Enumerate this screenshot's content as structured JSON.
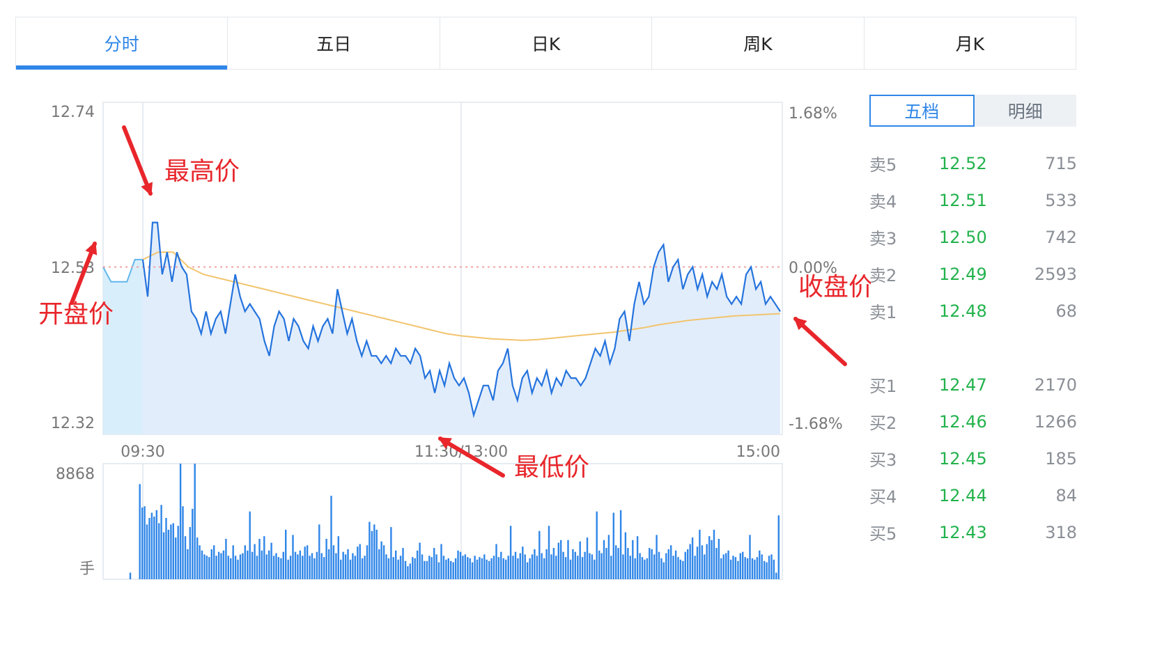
{
  "tabs": [
    {
      "label": "分时",
      "active": true
    },
    {
      "label": "五日",
      "active": false
    },
    {
      "label": "日K",
      "active": false
    },
    {
      "label": "周K",
      "active": false
    },
    {
      "label": "月K",
      "active": false
    }
  ],
  "orderbook_tabs": [
    {
      "label": "五档",
      "active": true
    },
    {
      "label": "明细",
      "active": false
    }
  ],
  "orderbook": {
    "sell": [
      {
        "label": "卖5",
        "price": "12.52",
        "volume": "715"
      },
      {
        "label": "卖4",
        "price": "12.51",
        "volume": "533"
      },
      {
        "label": "卖3",
        "price": "12.50",
        "volume": "742"
      },
      {
        "label": "卖2",
        "price": "12.49",
        "volume": "2593"
      },
      {
        "label": "卖1",
        "price": "12.48",
        "volume": "68"
      }
    ],
    "buy": [
      {
        "label": "买1",
        "price": "12.47",
        "volume": "2170"
      },
      {
        "label": "买2",
        "price": "12.46",
        "volume": "1266"
      },
      {
        "label": "买3",
        "price": "12.45",
        "volume": "185"
      },
      {
        "label": "买4",
        "price": "12.44",
        "volume": "84"
      },
      {
        "label": "买5",
        "price": "12.43",
        "volume": "318"
      }
    ]
  },
  "colors": {
    "accent": "#2f86e8",
    "price_line": "#2473dd",
    "avg_line": "#f2c46d",
    "baseline": "#f0a3a3",
    "annotation": "#e8262b",
    "buy_sell_price": "#22b24c"
  },
  "chart_data": {
    "type": "line",
    "price_ticks_left": [
      "12.74",
      "12.53",
      "12.32"
    ],
    "pct_ticks_right": [
      "1.68%",
      "0.00%",
      "-1.68%"
    ],
    "time_ticks": [
      "09:30",
      "11:30/13:00",
      "15:00"
    ],
    "volume_axis": {
      "max_label": "8868",
      "unit": "手"
    },
    "ylim": [
      12.32,
      12.74
    ],
    "prev_close": 12.53,
    "pre_open_price": [
      12.53,
      12.51,
      12.51,
      12.51,
      12.54,
      12.54
    ],
    "price": [
      12.54,
      12.49,
      12.59,
      12.59,
      12.52,
      12.55,
      12.51,
      12.55,
      12.53,
      12.52,
      12.47,
      12.46,
      12.44,
      12.47,
      12.44,
      12.46,
      12.47,
      12.44,
      12.48,
      12.52,
      12.49,
      12.47,
      12.48,
      12.47,
      12.46,
      12.43,
      12.41,
      12.45,
      12.47,
      12.46,
      12.43,
      12.46,
      12.45,
      12.43,
      12.42,
      12.45,
      12.43,
      12.45,
      12.46,
      12.44,
      12.5,
      12.47,
      12.44,
      12.46,
      12.43,
      12.41,
      12.43,
      12.41,
      12.41,
      12.4,
      12.41,
      12.4,
      12.42,
      12.41,
      12.41,
      12.4,
      12.42,
      12.41,
      12.38,
      12.39,
      12.36,
      12.39,
      12.37,
      12.4,
      12.38,
      12.37,
      12.38,
      12.36,
      12.33,
      12.35,
      12.37,
      12.37,
      12.35,
      12.39,
      12.4,
      12.42,
      12.37,
      12.35,
      12.38,
      12.39,
      12.36,
      12.38,
      12.37,
      12.39,
      12.36,
      12.38,
      12.37,
      12.39,
      12.38,
      12.38,
      12.37,
      12.38,
      12.4,
      12.42,
      12.41,
      12.43,
      12.4,
      12.42,
      12.46,
      12.47,
      12.43,
      12.48,
      12.51,
      12.48,
      12.49,
      12.53,
      12.55,
      12.56,
      12.51,
      12.53,
      12.54,
      12.5,
      12.52,
      12.53,
      12.5,
      12.52,
      12.49,
      12.51,
      12.5,
      12.52,
      12.49,
      12.48,
      12.49,
      12.48,
      12.52,
      12.53,
      12.5,
      12.51,
      12.48,
      12.49,
      12.48,
      12.47
    ],
    "avg_price": [
      12.54,
      12.55,
      12.55,
      12.53,
      12.52,
      12.515,
      12.51,
      12.505,
      12.5,
      12.495,
      12.49,
      12.485,
      12.48,
      12.475,
      12.47,
      12.465,
      12.46,
      12.455,
      12.45,
      12.445,
      12.44,
      12.437,
      12.435,
      12.433,
      12.432,
      12.431,
      12.432,
      12.434,
      12.436,
      12.438,
      12.44,
      12.442,
      12.445,
      12.448,
      12.452,
      12.455,
      12.458,
      12.46,
      12.462,
      12.464,
      12.465,
      12.466,
      12.467
    ],
    "volume": [
      0,
      0,
      0,
      0,
      0,
      0,
      0,
      0,
      0,
      0,
      0,
      500,
      0,
      0,
      0,
      7300,
      5500,
      5600,
      4200,
      4700,
      5100,
      4800,
      5300,
      4300,
      5700,
      3600,
      4700,
      3800,
      4200,
      4300,
      3200,
      4100,
      8868,
      5600,
      3300,
      2300,
      4000,
      5400,
      8868,
      3200,
      2600,
      2200,
      1900,
      1800,
      1700,
      2300,
      2600,
      1800,
      2100,
      2000,
      2200,
      3100,
      1800,
      1600,
      2600,
      1800,
      1500,
      1900,
      2000,
      2600,
      2200,
      5200,
      2100,
      2700,
      1800,
      3100,
      2200,
      3300,
      1900,
      2200,
      2800,
      1800,
      2000,
      1700,
      1600,
      2100,
      3800,
      1500,
      1800,
      3400,
      2100,
      1900,
      2200,
      1800,
      2500,
      2600,
      1800,
      2000,
      1600,
      2100,
      4200,
      2000,
      1700,
      3100,
      2300,
      6400,
      2600,
      2000,
      3300,
      1500,
      2100,
      1900,
      2300,
      1500,
      2000,
      1800,
      2500,
      2700,
      1600,
      1800,
      2600,
      4400,
      3700,
      4200,
      3800,
      2300,
      2900,
      2600,
      1900,
      1600,
      4000,
      1700,
      2200,
      1500,
      1800,
      2400,
      1400,
      1000,
      1200,
      1700,
      1600,
      2200,
      2800,
      1900,
      1400,
      1400,
      1800,
      1700,
      2400,
      1900,
      1300,
      2700,
      1800,
      1500,
      1600,
      1400,
      1300,
      1600,
      2200,
      2100,
      1800,
      1900,
      1700,
      1600,
      1300,
      1800,
      1500,
      1700,
      1600,
      1900,
      1500,
      1400,
      1600,
      1800,
      2700,
      1700,
      2100,
      1600,
      1500,
      1800,
      4100,
      1800,
      2100,
      1600,
      2000,
      2500,
      1900,
      1300,
      1600,
      1900,
      2300,
      1800,
      3700,
      2000,
      1600,
      2300,
      4100,
      1900,
      2400,
      1800,
      2800,
      3000,
      2100,
      1700,
      3000,
      1500,
      2300,
      2100,
      1800,
      2900,
      1700,
      2100,
      3200,
      2000,
      1900,
      1500,
      5200,
      2200,
      2000,
      3000,
      2400,
      3400,
      1800,
      5100,
      2600,
      2400,
      5300,
      1900,
      3600,
      2400,
      1800,
      3000,
      1600,
      3300,
      2000,
      1700,
      1500,
      1600,
      2400,
      2300,
      1900,
      3400,
      2100,
      1600,
      1300,
      2000,
      2300,
      2600,
      1800,
      2200,
      1700,
      1500,
      1400,
      2100,
      2300,
      2700,
      3200,
      1800,
      2500,
      3800,
      2600,
      1900,
      2700,
      3300,
      3000,
      3800,
      2400,
      3100,
      1600,
      1900,
      2000,
      2200,
      1500,
      1800,
      1700,
      1400,
      2000,
      2100,
      1700,
      1600,
      3400,
      1600,
      1500,
      1700,
      2200,
      1900,
      1400,
      1300,
      1800,
      1900,
      1500,
      500,
      4900
    ],
    "annotations": [
      {
        "text": "最高价"
      },
      {
        "text": "开盘价"
      },
      {
        "text": "最低价"
      },
      {
        "text": "收盘价"
      }
    ]
  }
}
